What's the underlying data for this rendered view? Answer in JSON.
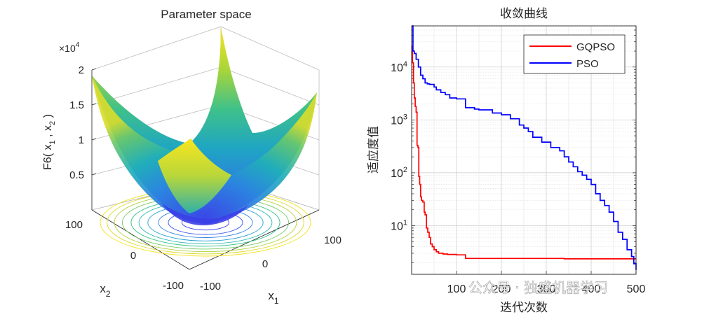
{
  "chart_data": [
    {
      "type": "surface",
      "title": "Parameter space",
      "zlabel": "F6( x1 , x2 )",
      "zlabel_parts": [
        "F6( x",
        "1",
        " , x",
        "2",
        " )"
      ],
      "xlabel": "x1",
      "ylabel": "x2",
      "x_ticks": [
        "-100",
        "0",
        "100"
      ],
      "y_ticks": [
        "-100",
        "0",
        "100"
      ],
      "z_ticks": [
        "0.5",
        "1",
        "1.5",
        "2"
      ],
      "z_exponent": "×10",
      "z_exponent_power": "4",
      "z_range": [
        0,
        20000
      ],
      "x_range": [
        -100,
        100
      ],
      "y_range": [
        -100,
        100
      ],
      "function": "x1^2 + x2^2",
      "contour_levels": [
        1000,
        2500,
        4000,
        6000,
        8000,
        10000,
        12500,
        15000,
        17500,
        20000
      ]
    },
    {
      "type": "line",
      "title": "收敛曲线",
      "xlabel": "迭代次数",
      "ylabel": "适应度值",
      "yscale": "log",
      "xlim": [
        0,
        500
      ],
      "ylim": [
        1.2,
        60000
      ],
      "x_ticks": [
        "100",
        "200",
        "300",
        "400",
        "500"
      ],
      "y_ticks": [
        {
          "base": "10",
          "exp": "1",
          "value": 10
        },
        {
          "base": "10",
          "exp": "2",
          "value": 100
        },
        {
          "base": "10",
          "exp": "3",
          "value": 1000
        },
        {
          "base": "10",
          "exp": "4",
          "value": 10000
        }
      ],
      "legend_position": "top-right",
      "series": [
        {
          "name": "GQPSO",
          "color": "#ff0000",
          "x": [
            1,
            2,
            4,
            6,
            8,
            10,
            12,
            14,
            16,
            18,
            20,
            22,
            25,
            28,
            30,
            33,
            36,
            39,
            42,
            46,
            50,
            55,
            60,
            70,
            80,
            100,
            120,
            200,
            300,
            340,
            400,
            450,
            500
          ],
          "y": [
            25000,
            12000,
            5000,
            2600,
            1800,
            1400,
            330,
            300,
            85,
            60,
            35,
            30,
            28,
            18,
            16,
            9,
            7.5,
            6.0,
            4.5,
            4.0,
            3.5,
            3.2,
            3.0,
            2.9,
            2.85,
            2.8,
            2.4,
            2.4,
            2.4,
            2.35,
            2.35,
            2.35,
            2.35
          ]
        },
        {
          "name": "PSO",
          "color": "#0000ff",
          "x": [
            1,
            3,
            6,
            10,
            15,
            20,
            25,
            30,
            35,
            40,
            50,
            55,
            65,
            75,
            85,
            100,
            120,
            140,
            150,
            180,
            200,
            220,
            240,
            250,
            260,
            270,
            290,
            310,
            330,
            340,
            350,
            360,
            370,
            380,
            390,
            400,
            410,
            420,
            430,
            440,
            450,
            460,
            470,
            480,
            490,
            495,
            500
          ],
          "y": [
            60000,
            20000,
            18000,
            14000,
            10000,
            7000,
            6000,
            5000,
            4800,
            4700,
            4200,
            3700,
            3300,
            3000,
            2600,
            2500,
            1700,
            1600,
            1550,
            1350,
            1250,
            1050,
            800,
            700,
            600,
            470,
            380,
            300,
            260,
            200,
            160,
            130,
            105,
            90,
            75,
            60,
            40,
            30,
            24,
            18,
            12,
            7.5,
            5.5,
            3.5,
            2.6,
            1.9,
            1.45
          ]
        }
      ]
    }
  ],
  "watermark": "公众号 · 独盛机器学习"
}
